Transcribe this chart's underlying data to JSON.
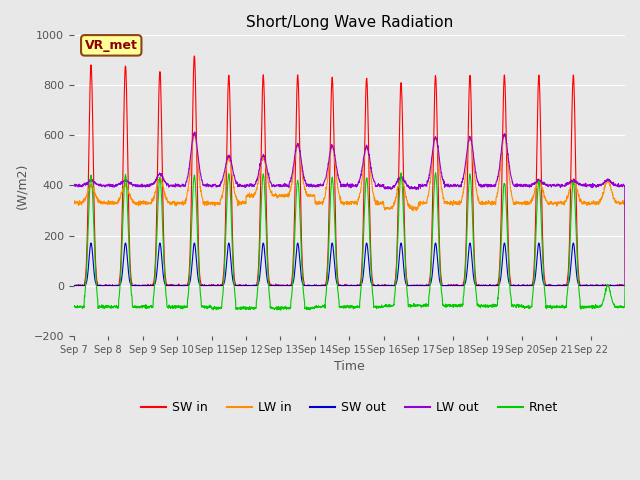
{
  "title": "Short/Long Wave Radiation",
  "xlabel": "Time",
  "ylabel": "(W/m2)",
  "ylim": [
    -200,
    1000
  ],
  "yticks": [
    -200,
    0,
    200,
    400,
    600,
    800,
    1000
  ],
  "background_color": "#e8e8e8",
  "plot_bg_color": "#e8e8e8",
  "annotation_text": "VR_met",
  "annotation_box_color": "#ffff99",
  "annotation_border_color": "#8B4513",
  "series": {
    "SW_in": {
      "color": "#ff0000",
      "label": "SW in"
    },
    "LW_in": {
      "color": "#ff8c00",
      "label": "LW in"
    },
    "SW_out": {
      "color": "#0000cd",
      "label": "SW out"
    },
    "LW_out": {
      "color": "#9400d3",
      "label": "LW out"
    },
    "Rnet": {
      "color": "#00cc00",
      "label": "Rnet"
    }
  },
  "n_days": 16,
  "points_per_day": 144,
  "sw_in_peak": [
    880,
    880,
    855,
    920,
    840,
    840,
    840,
    830,
    830,
    810,
    840,
    840,
    840,
    840,
    840,
    0
  ],
  "lw_in_day": [
    400,
    400,
    430,
    605,
    510,
    510,
    560,
    555,
    555,
    430,
    590,
    590,
    600,
    420,
    420,
    420
  ],
  "lw_in_night": [
    330,
    330,
    330,
    330,
    330,
    360,
    360,
    330,
    330,
    310,
    330,
    330,
    330,
    330,
    330,
    330
  ],
  "sw_out_peak": [
    170,
    170,
    170,
    170,
    170,
    170,
    170,
    170,
    170,
    170,
    170,
    170,
    170,
    170,
    170,
    0
  ],
  "lw_out_day": [
    420,
    420,
    445,
    610,
    520,
    520,
    565,
    560,
    555,
    435,
    595,
    595,
    605,
    420,
    420,
    420
  ],
  "lw_out_night": [
    400,
    400,
    400,
    400,
    400,
    400,
    400,
    400,
    400,
    390,
    400,
    400,
    400,
    400,
    400,
    400
  ],
  "rnet_peak": [
    440,
    440,
    430,
    440,
    445,
    445,
    420,
    430,
    430,
    450,
    445,
    445,
    410,
    415,
    415,
    0
  ],
  "rnet_night": [
    -85,
    -85,
    -85,
    -85,
    -90,
    -90,
    -90,
    -85,
    -85,
    -80,
    -80,
    -80,
    -80,
    -85,
    -85,
    -85
  ],
  "tick_positions": [
    0,
    1,
    2,
    3,
    4,
    5,
    6,
    7,
    8,
    9,
    10,
    11,
    12,
    13,
    14,
    15
  ],
  "tick_labels": [
    "Sep 7",
    "Sep 8",
    "Sep 9",
    "Sep 10",
    "Sep 11",
    "Sep 12",
    "Sep 13",
    "Sep 14",
    "Sep 15",
    "Sep 16",
    "Sep 17",
    "Sep 18",
    "Sep 19",
    "Sep 20",
    "Sep 21",
    "Sep 22"
  ]
}
